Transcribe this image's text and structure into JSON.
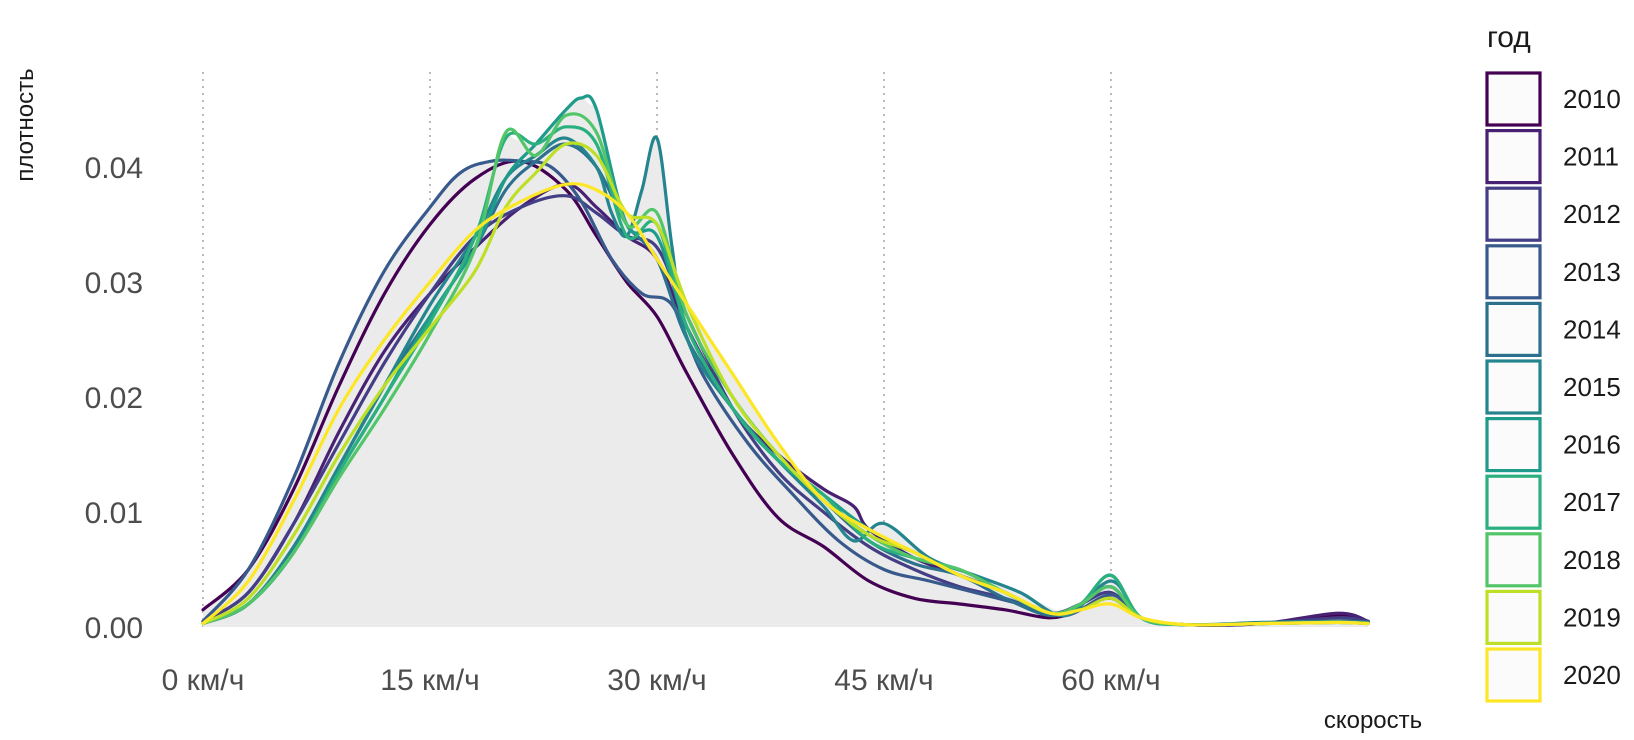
{
  "chart_data": {
    "type": "area",
    "title": "",
    "xlabel": "скорость",
    "ylabel": "плотность",
    "xlim": [
      -0.5,
      77
    ],
    "ylim": [
      0,
      0.048
    ],
    "x_ticks": [
      0,
      15,
      30,
      45,
      60
    ],
    "x_tick_labels": [
      "0 км/ч",
      "15 км/ч",
      "30 км/ч",
      "45 км/ч",
      "60 км/ч"
    ],
    "y_ticks": [
      0,
      0.01,
      0.02,
      0.03,
      0.04
    ],
    "y_tick_labels": [
      "0.00",
      "0.01",
      "0.02",
      "0.03",
      "0.04"
    ],
    "grid": "vertical dotted at x ticks",
    "legend": {
      "title": "год",
      "position": "right"
    },
    "fill_color": "#ebebeb",
    "series": [
      {
        "name": "2010",
        "color": "#440154",
        "x": [
          0,
          3,
          6,
          9,
          12,
          15,
          18,
          21,
          24,
          26,
          28,
          30,
          32,
          35,
          38,
          41,
          44,
          47,
          50,
          53,
          56,
          58,
          60,
          62,
          65,
          70,
          75,
          77
        ],
        "y": [
          0.0015,
          0.005,
          0.012,
          0.021,
          0.029,
          0.035,
          0.039,
          0.0405,
          0.038,
          0.034,
          0.03,
          0.027,
          0.022,
          0.015,
          0.0095,
          0.007,
          0.004,
          0.0025,
          0.002,
          0.0015,
          0.0008,
          0.0015,
          0.0025,
          0.0008,
          0.0002,
          0.0003,
          0.001,
          0.0005
        ]
      },
      {
        "name": "2011",
        "color": "#482173",
        "x": [
          0,
          3,
          6,
          9,
          12,
          15,
          18,
          21,
          24,
          26,
          28,
          30,
          32,
          35,
          38,
          41,
          43,
          44,
          47,
          50,
          53,
          56,
          58,
          60,
          62,
          65,
          70,
          75,
          77
        ],
        "y": [
          0.0005,
          0.003,
          0.009,
          0.017,
          0.024,
          0.029,
          0.033,
          0.0365,
          0.0385,
          0.0365,
          0.034,
          0.032,
          0.026,
          0.019,
          0.015,
          0.012,
          0.0105,
          0.0085,
          0.006,
          0.0045,
          0.003,
          0.0012,
          0.002,
          0.0035,
          0.0008,
          0.0002,
          0.0003,
          0.0012,
          0.0005
        ]
      },
      {
        "name": "2012",
        "color": "#433e85",
        "x": [
          0,
          3,
          6,
          9,
          12,
          15,
          18,
          21,
          24,
          26,
          28,
          30,
          32,
          35,
          38,
          41,
          44,
          47,
          50,
          53,
          56,
          58,
          60,
          62,
          65,
          70,
          75,
          77
        ],
        "y": [
          0.0005,
          0.003,
          0.009,
          0.016,
          0.023,
          0.029,
          0.034,
          0.0365,
          0.0375,
          0.036,
          0.034,
          0.033,
          0.027,
          0.019,
          0.0135,
          0.01,
          0.007,
          0.005,
          0.0035,
          0.0025,
          0.0012,
          0.002,
          0.003,
          0.0008,
          0.0002,
          0.0003,
          0.0008,
          0.0005
        ]
      },
      {
        "name": "2013",
        "color": "#38598c",
        "x": [
          0,
          3,
          6,
          9,
          12,
          15,
          17,
          19,
          21,
          23,
          25,
          27,
          29,
          31,
          33,
          36,
          39,
          42,
          45,
          48,
          51,
          54,
          57,
          60,
          62,
          65,
          70,
          75,
          77
        ],
        "y": [
          0.0005,
          0.005,
          0.013,
          0.023,
          0.031,
          0.0365,
          0.0395,
          0.0405,
          0.0405,
          0.04,
          0.037,
          0.032,
          0.029,
          0.028,
          0.022,
          0.016,
          0.0115,
          0.0075,
          0.005,
          0.004,
          0.003,
          0.002,
          0.001,
          0.0028,
          0.0008,
          0.0002,
          0.0003,
          0.0005,
          0.0004
        ]
      },
      {
        "name": "2014",
        "color": "#2d708e",
        "x": [
          0,
          3,
          6,
          9,
          12,
          15,
          18,
          20,
          22,
          24,
          26,
          28,
          30,
          32,
          35,
          38,
          41,
          44,
          47,
          50,
          53,
          56,
          58,
          60,
          62,
          65,
          70,
          75,
          77
        ],
        "y": [
          0.0003,
          0.002,
          0.007,
          0.014,
          0.021,
          0.027,
          0.033,
          0.038,
          0.0405,
          0.042,
          0.04,
          0.035,
          0.032,
          0.025,
          0.019,
          0.0145,
          0.011,
          0.0075,
          0.0055,
          0.0045,
          0.0025,
          0.001,
          0.002,
          0.0035,
          0.0008,
          0.0002,
          0.0003,
          0.0005,
          0.0004
        ]
      },
      {
        "name": "2015",
        "color": "#25858e",
        "x": [
          0,
          3,
          6,
          9,
          12,
          15,
          18,
          20,
          22,
          24,
          26,
          27,
          28,
          29,
          30,
          31,
          32,
          35,
          38,
          41,
          43,
          45,
          48,
          51,
          54,
          57,
          60,
          62,
          65,
          70,
          75,
          77
        ],
        "y": [
          0.0003,
          0.002,
          0.007,
          0.014,
          0.021,
          0.028,
          0.034,
          0.039,
          0.041,
          0.0425,
          0.04,
          0.036,
          0.034,
          0.038,
          0.0425,
          0.033,
          0.025,
          0.019,
          0.0145,
          0.0105,
          0.0075,
          0.009,
          0.006,
          0.0045,
          0.003,
          0.001,
          0.004,
          0.0008,
          0.0002,
          0.0004,
          0.0005,
          0.0004
        ]
      },
      {
        "name": "2016",
        "color": "#1e9b8a",
        "x": [
          0,
          3,
          6,
          9,
          12,
          15,
          18,
          20,
          22,
          24,
          25,
          26,
          28,
          30,
          32,
          35,
          38,
          41,
          44,
          47,
          50,
          53,
          56,
          58,
          60,
          62,
          65,
          70,
          75,
          77
        ],
        "y": [
          0.0003,
          0.002,
          0.0065,
          0.0135,
          0.02,
          0.027,
          0.033,
          0.039,
          0.042,
          0.045,
          0.046,
          0.045,
          0.035,
          0.034,
          0.026,
          0.019,
          0.0145,
          0.0115,
          0.0085,
          0.0065,
          0.0045,
          0.003,
          0.0012,
          0.002,
          0.0045,
          0.0008,
          0.0002,
          0.0003,
          0.0004,
          0.0003
        ]
      },
      {
        "name": "2017",
        "color": "#2ab07f",
        "x": [
          0,
          3,
          6,
          9,
          12,
          15,
          18,
          20,
          22,
          24,
          26,
          28,
          30,
          32,
          35,
          38,
          41,
          44,
          47,
          50,
          53,
          56,
          58,
          60,
          62,
          65,
          70,
          75,
          77
        ],
        "y": [
          0.0003,
          0.002,
          0.0065,
          0.0135,
          0.02,
          0.0265,
          0.034,
          0.0425,
          0.042,
          0.0435,
          0.042,
          0.034,
          0.035,
          0.026,
          0.019,
          0.0145,
          0.0115,
          0.0075,
          0.006,
          0.005,
          0.003,
          0.0012,
          0.002,
          0.0045,
          0.0008,
          0.0002,
          0.0003,
          0.0004,
          0.0003
        ]
      },
      {
        "name": "2018",
        "color": "#52c569",
        "x": [
          0,
          3,
          6,
          9,
          12,
          15,
          18,
          20,
          22,
          24,
          26,
          28,
          30,
          32,
          35,
          38,
          41,
          44,
          47,
          50,
          53,
          56,
          58,
          60,
          62,
          65,
          70,
          75,
          77
        ],
        "y": [
          0.0003,
          0.002,
          0.0065,
          0.013,
          0.019,
          0.0255,
          0.033,
          0.043,
          0.041,
          0.0445,
          0.043,
          0.035,
          0.036,
          0.027,
          0.02,
          0.015,
          0.011,
          0.008,
          0.006,
          0.005,
          0.003,
          0.0012,
          0.002,
          0.0035,
          0.0008,
          0.0002,
          0.0003,
          0.0004,
          0.0003
        ]
      },
      {
        "name": "2019",
        "color": "#bddf26",
        "x": [
          0,
          3,
          6,
          9,
          12,
          15,
          18,
          20,
          22,
          24,
          26,
          28,
          30,
          32,
          35,
          38,
          41,
          44,
          47,
          50,
          53,
          56,
          58,
          60,
          62,
          65,
          70,
          75,
          77
        ],
        "y": [
          0.0003,
          0.0025,
          0.008,
          0.015,
          0.021,
          0.026,
          0.031,
          0.0365,
          0.0395,
          0.042,
          0.041,
          0.036,
          0.035,
          0.028,
          0.02,
          0.015,
          0.011,
          0.008,
          0.0065,
          0.0045,
          0.003,
          0.0012,
          0.0015,
          0.0025,
          0.0008,
          0.0002,
          0.0003,
          0.0004,
          0.0003
        ]
      },
      {
        "name": "2020",
        "color": "#fde725",
        "x": [
          0,
          3,
          6,
          9,
          12,
          15,
          18,
          21,
          24,
          26,
          28,
          30,
          32,
          35,
          38,
          41,
          44,
          47,
          50,
          53,
          56,
          58,
          60,
          62,
          65,
          70,
          75,
          77
        ],
        "y": [
          0.0003,
          0.004,
          0.011,
          0.019,
          0.025,
          0.03,
          0.0345,
          0.037,
          0.0385,
          0.038,
          0.036,
          0.032,
          0.028,
          0.022,
          0.016,
          0.011,
          0.0085,
          0.0065,
          0.0045,
          0.003,
          0.0012,
          0.0015,
          0.002,
          0.0008,
          0.0002,
          0.0003,
          0.0004,
          0.0003
        ]
      }
    ]
  }
}
